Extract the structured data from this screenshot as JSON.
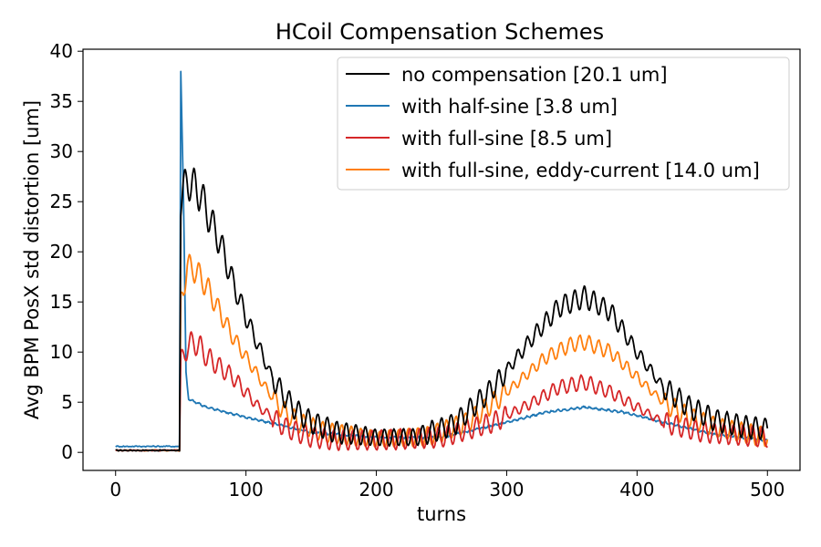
{
  "chart_data": {
    "type": "line",
    "title": "HCoil Compensation Schemes",
    "xlabel": "turns",
    "ylabel": "Avg BPM PosX std distortion [um]",
    "xlim": [
      -25,
      525
    ],
    "ylim": [
      -1.8,
      40.2
    ],
    "xticks": [
      0,
      100,
      200,
      300,
      400,
      500
    ],
    "yticks": [
      0,
      5,
      10,
      15,
      20,
      25,
      30,
      35,
      40
    ],
    "legend_position": "top-right",
    "grid": false,
    "series": [
      {
        "name": "no compensation [20.1 um]",
        "color": "#000000",
        "kind": "nocomp",
        "keypoints": [
          [
            50,
            25
          ],
          [
            55,
            27.2
          ],
          [
            60,
            26.5
          ],
          [
            65,
            25.8
          ],
          [
            70,
            24
          ],
          [
            80,
            21
          ],
          [
            90,
            17
          ],
          [
            100,
            13.5
          ],
          [
            110,
            10.5
          ],
          [
            120,
            7.5
          ],
          [
            130,
            5.5
          ],
          [
            140,
            4
          ],
          [
            150,
            3
          ],
          [
            170,
            2
          ],
          [
            200,
            1.5
          ],
          [
            230,
            1.5
          ],
          [
            260,
            2.8
          ],
          [
            290,
            6.5
          ],
          [
            320,
            11.5
          ],
          [
            340,
            14.5
          ],
          [
            360,
            15.5
          ],
          [
            380,
            14
          ],
          [
            400,
            10
          ],
          [
            420,
            6.5
          ],
          [
            440,
            4.5
          ],
          [
            460,
            3.2
          ],
          [
            480,
            2.6
          ],
          [
            500,
            2.3
          ]
        ]
      },
      {
        "name": "with half-sine [3.8 um]",
        "color": "#1f77b4",
        "kind": "halfsine",
        "keypoints": [
          [
            50,
            38
          ],
          [
            52,
            26
          ],
          [
            54,
            8
          ],
          [
            56,
            5.3
          ],
          [
            70,
            4.5
          ],
          [
            100,
            3.5
          ],
          [
            150,
            2.0
          ],
          [
            200,
            1.5
          ],
          [
            250,
            1.5
          ],
          [
            300,
            3.0
          ],
          [
            330,
            4.0
          ],
          [
            360,
            4.5
          ],
          [
            390,
            4.0
          ],
          [
            420,
            3.0
          ],
          [
            460,
            1.8
          ],
          [
            500,
            1.2
          ]
        ]
      },
      {
        "name": "with full-sine [8.5 um]",
        "color": "#d62728",
        "kind": "fullsine",
        "keypoints": [
          [
            50,
            9
          ],
          [
            55,
            10.5
          ],
          [
            60,
            11
          ],
          [
            65,
            10.5
          ],
          [
            70,
            9.5
          ],
          [
            80,
            8.5
          ],
          [
            90,
            7.5
          ],
          [
            100,
            6
          ],
          [
            110,
            4.5
          ],
          [
            120,
            3.5
          ],
          [
            130,
            2.5
          ],
          [
            150,
            1.5
          ],
          [
            170,
            1.2
          ],
          [
            200,
            1.2
          ],
          [
            250,
            1.5
          ],
          [
            290,
            3
          ],
          [
            320,
            5
          ],
          [
            340,
            6.5
          ],
          [
            360,
            7
          ],
          [
            380,
            6
          ],
          [
            400,
            4.5
          ],
          [
            420,
            3
          ],
          [
            450,
            2
          ],
          [
            500,
            1.5
          ]
        ]
      },
      {
        "name": "with full-sine, eddy-current [14.0 um]",
        "color": "#ff7f0e",
        "kind": "eddy",
        "keypoints": [
          [
            50,
            15
          ],
          [
            55,
            18.5
          ],
          [
            60,
            18.3
          ],
          [
            65,
            17.5
          ],
          [
            70,
            16.5
          ],
          [
            80,
            14
          ],
          [
            90,
            11.5
          ],
          [
            100,
            9.5
          ],
          [
            110,
            7.5
          ],
          [
            120,
            5.5
          ],
          [
            130,
            4
          ],
          [
            140,
            3
          ],
          [
            160,
            2
          ],
          [
            200,
            1.3
          ],
          [
            240,
            1.6
          ],
          [
            270,
            3
          ],
          [
            300,
            6
          ],
          [
            330,
            9.5
          ],
          [
            350,
            10.8
          ],
          [
            360,
            11
          ],
          [
            380,
            10
          ],
          [
            400,
            7.5
          ],
          [
            420,
            5
          ],
          [
            440,
            3.5
          ],
          [
            460,
            2.5
          ],
          [
            500,
            1.5
          ]
        ]
      }
    ]
  }
}
